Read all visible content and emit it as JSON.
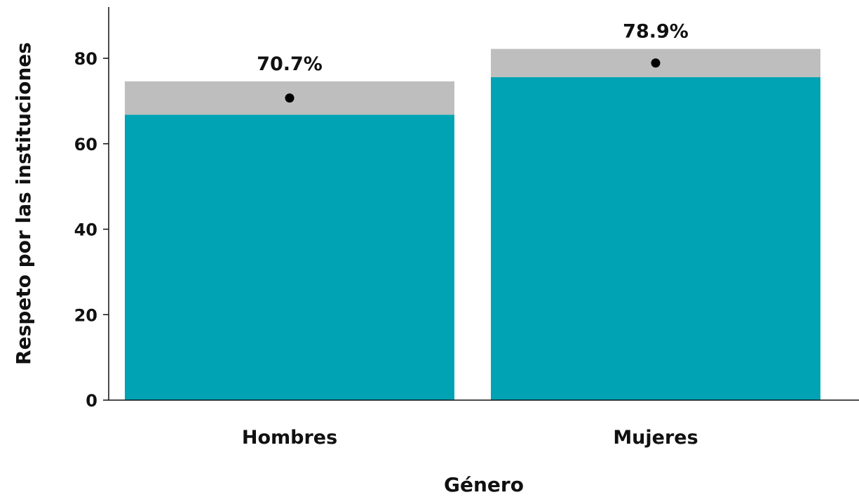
{
  "chart_data": {
    "type": "bar",
    "xlabel": "Género",
    "ylabel": "Respeto por las instituciones",
    "categories": [
      "Hombres",
      "Mujeres"
    ],
    "values": [
      70.7,
      78.9
    ],
    "value_labels": [
      "70.7%",
      "78.9%"
    ],
    "confidence_interval": {
      "lower": [
        66.8,
        75.6
      ],
      "upper": [
        74.6,
        82.2
      ]
    },
    "ylim": [
      0,
      92
    ],
    "yticks": [
      0,
      20,
      40,
      60,
      80
    ],
    "grid": false,
    "legend": "none",
    "colors": {
      "bar": "#00A3B4",
      "interval": "#BEBEBE",
      "point": "#000000",
      "axis": "#111111"
    }
  }
}
